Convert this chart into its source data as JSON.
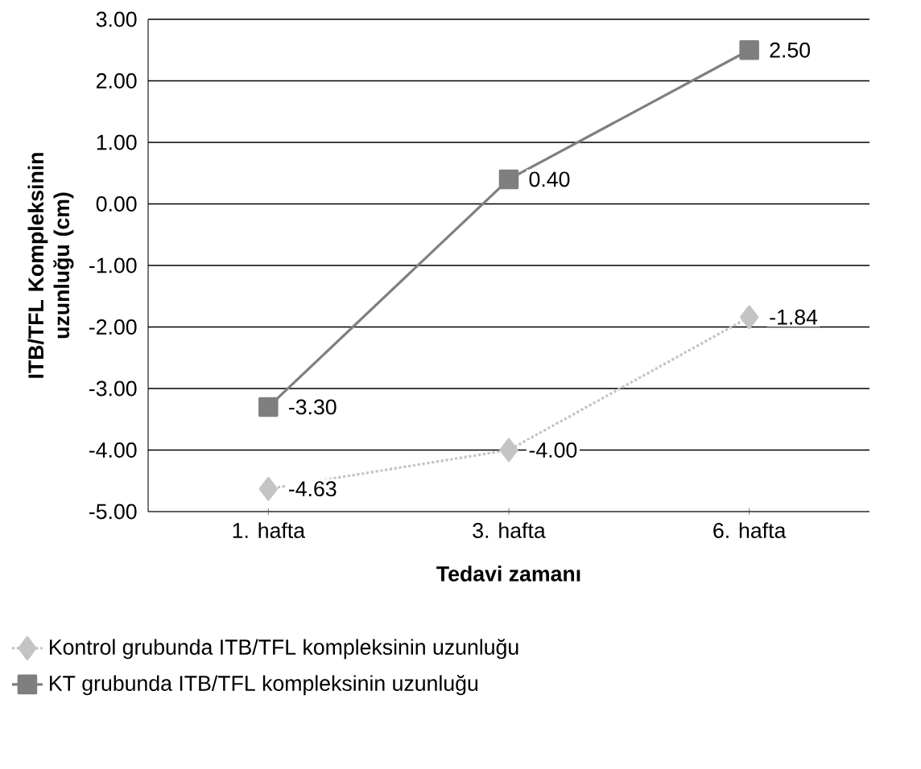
{
  "chart_data": {
    "type": "line",
    "xlabel": "Tedavi zamanı",
    "ylabel": "ITB/TFL Kompleksinin uzunluğu (cm)",
    "categories": [
      "1. hafta",
      "3. hafta",
      "6. hafta"
    ],
    "series": [
      {
        "name": "Kontrol grubunda ITB/TFL kompleksinin uzunluğu",
        "color": "#c4c4c4",
        "values": [
          -4.63,
          -4.0,
          -1.84
        ],
        "value_labels": [
          "-4.63",
          "-4.00",
          "-1.84"
        ],
        "marker": "diamond",
        "line_style": "dotted"
      },
      {
        "name": "KT grubunda ITB/TFL kompleksinin uzunluğu",
        "color": "#7f7f7f",
        "values": [
          -3.3,
          0.4,
          2.5
        ],
        "value_labels": [
          "-3.30",
          "0.40",
          "2.50"
        ],
        "marker": "square",
        "line_style": "solid"
      }
    ],
    "ylim": [
      -5,
      3
    ],
    "yticks": [
      {
        "value": -5,
        "label": "-5.00"
      },
      {
        "value": -4,
        "label": "-4.00"
      },
      {
        "value": -3,
        "label": "-3.00"
      },
      {
        "value": -2,
        "label": "-2.00"
      },
      {
        "value": -1,
        "label": "-1.00"
      },
      {
        "value": 0,
        "label": "0.00"
      },
      {
        "value": 1,
        "label": "1.00"
      },
      {
        "value": 2,
        "label": "2.00"
      },
      {
        "value": 3,
        "label": "3.00"
      }
    ],
    "grid": "y",
    "legend": "bottom"
  }
}
